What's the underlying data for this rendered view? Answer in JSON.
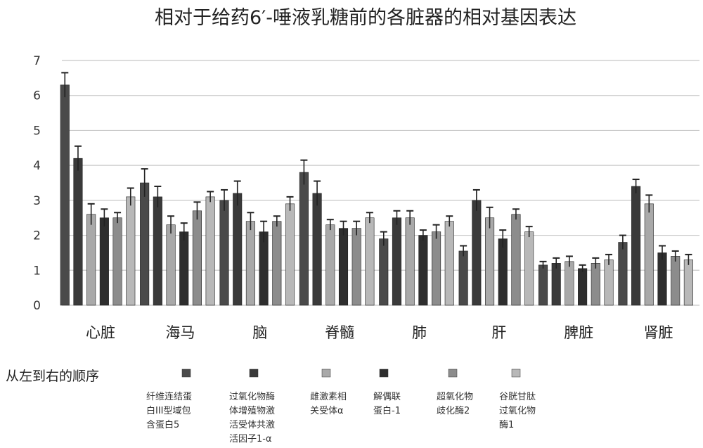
{
  "chart_data": {
    "type": "bar",
    "title": "相对于给药6′-唾液乳糖前的各脏器的相对基因表达",
    "categories": [
      "心脏",
      "海马",
      "脑",
      "脊髓",
      "肺",
      "肝",
      "脾脏",
      "肾脏"
    ],
    "ylim": [
      0,
      7
    ],
    "yticks": [
      0,
      1,
      2,
      3,
      4,
      5,
      6,
      7
    ],
    "grid": true,
    "order_label": "从左到右的顺序",
    "legend_position": "bottom",
    "series": [
      {
        "name": [
          "纤维连结蛋",
          "白III型域包",
          "含蛋白5"
        ],
        "color": "#4a4a4a",
        "values": [
          6.3,
          3.5,
          3.0,
          3.8,
          1.9,
          1.55,
          1.15,
          1.8
        ],
        "errors": [
          0.35,
          0.4,
          0.3,
          0.35,
          0.2,
          0.15,
          0.1,
          0.2
        ]
      },
      {
        "name": [
          "过氧化物酶",
          "体增殖物激",
          "活受体共激",
          "活因子1-α"
        ],
        "color": "#3a3a3a",
        "values": [
          4.2,
          3.1,
          3.2,
          3.2,
          2.5,
          3.0,
          1.2,
          3.4
        ],
        "errors": [
          0.35,
          0.3,
          0.35,
          0.35,
          0.2,
          0.3,
          0.15,
          0.2
        ]
      },
      {
        "name": [
          "雌激素相",
          "关受体α"
        ],
        "color": "#a9a9a9",
        "values": [
          2.6,
          2.3,
          2.4,
          2.3,
          2.5,
          2.5,
          1.25,
          2.9
        ],
        "errors": [
          0.3,
          0.25,
          0.25,
          0.15,
          0.2,
          0.3,
          0.15,
          0.25
        ]
      },
      {
        "name": [
          "解偶联",
          "蛋白-1"
        ],
        "color": "#2e2e2e",
        "values": [
          2.5,
          2.1,
          2.1,
          2.2,
          2.0,
          1.9,
          1.05,
          1.5
        ],
        "errors": [
          0.25,
          0.25,
          0.3,
          0.2,
          0.15,
          0.25,
          0.1,
          0.2
        ]
      },
      {
        "name": [
          "超氧化物",
          "歧化酶2"
        ],
        "color": "#8c8c8c",
        "values": [
          2.5,
          2.7,
          2.4,
          2.2,
          2.1,
          2.6,
          1.2,
          1.4
        ],
        "errors": [
          0.15,
          0.25,
          0.15,
          0.2,
          0.2,
          0.15,
          0.15,
          0.15
        ]
      },
      {
        "name": [
          "谷胱甘肽",
          "过氧化物",
          "酶1"
        ],
        "color": "#b8b8b8",
        "values": [
          3.1,
          3.1,
          2.9,
          2.5,
          2.4,
          2.1,
          1.3,
          1.3
        ],
        "errors": [
          0.25,
          0.15,
          0.2,
          0.15,
          0.15,
          0.15,
          0.15,
          0.15
        ]
      }
    ]
  }
}
